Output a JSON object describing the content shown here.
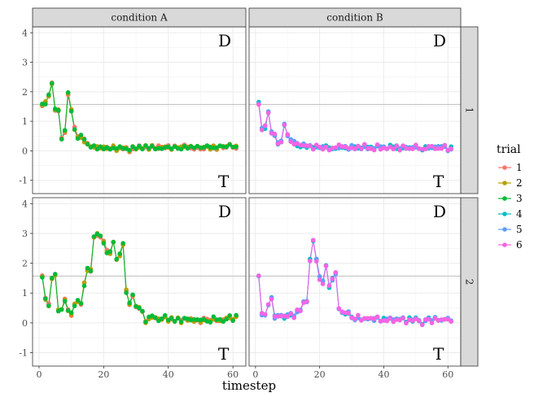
{
  "chart_data": {
    "type": "line",
    "xlabel": "timestep",
    "ylabel": "",
    "xlim": [
      -2,
      64
    ],
    "ylim": [
      -1.45,
      4.2
    ],
    "x_ticks": [
      0,
      20,
      40,
      60
    ],
    "y_ticks": [
      -1,
      0,
      1,
      2,
      3,
      4
    ],
    "reference_line": 1.57,
    "col_facets": [
      "condition A",
      "condition B"
    ],
    "row_facets": [
      "1",
      "2"
    ],
    "annotations": {
      "top": "D",
      "bottom": "T"
    },
    "legend": {
      "title": "trial",
      "placement": "right",
      "entries": [
        {
          "label": "1",
          "color": "#F8766D"
        },
        {
          "label": "2",
          "color": "#B79F00"
        },
        {
          "label": "3",
          "color": "#00BA38"
        },
        {
          "label": "4",
          "color": "#00BFC4"
        },
        {
          "label": "5",
          "color": "#619CFF"
        },
        {
          "label": "6",
          "color": "#F564E3"
        }
      ]
    },
    "panels": [
      {
        "row": "1",
        "col": "condition A",
        "trials": [
          "1",
          "2",
          "3"
        ],
        "series": [
          {
            "x": 1,
            "y": 1.58
          },
          {
            "x": 2,
            "y": 1.62
          },
          {
            "x": 3,
            "y": 1.9
          },
          {
            "x": 4,
            "y": 2.3
          },
          {
            "x": 5,
            "y": 1.38
          },
          {
            "x": 6,
            "y": 1.35
          },
          {
            "x": 7,
            "y": 0.42
          },
          {
            "x": 8,
            "y": 0.65
          },
          {
            "x": 9,
            "y": 1.92
          },
          {
            "x": 10,
            "y": 1.35
          },
          {
            "x": 11,
            "y": 0.75
          },
          {
            "x": 12,
            "y": 0.45
          },
          {
            "x": 13,
            "y": 0.5
          },
          {
            "x": 14,
            "y": 0.35
          },
          {
            "x": 15,
            "y": 0.22
          },
          {
            "x": 16,
            "y": 0.15
          },
          {
            "x": 17,
            "y": 0.12
          },
          {
            "x": 18,
            "y": 0.1
          },
          {
            "x": 19,
            "y": 0.1
          },
          {
            "x": 20,
            "y": 0.08
          },
          {
            "x": 21,
            "y": 0.1
          },
          {
            "x": 22,
            "y": 0.05
          },
          {
            "x": 23,
            "y": 0.12
          },
          {
            "x": 24,
            "y": 0.05
          },
          {
            "x": 25,
            "y": 0.15
          },
          {
            "x": 26,
            "y": 0.08
          },
          {
            "x": 27,
            "y": 0.12
          },
          {
            "x": 28,
            "y": 0.02
          },
          {
            "x": 29,
            "y": 0.1
          },
          {
            "x": 30,
            "y": 0.08
          },
          {
            "x": 31,
            "y": 0.12
          },
          {
            "x": 32,
            "y": 0.05
          },
          {
            "x": 33,
            "y": 0.15
          },
          {
            "x": 34,
            "y": 0.1
          },
          {
            "x": 35,
            "y": 0.18
          },
          {
            "x": 36,
            "y": 0.05
          },
          {
            "x": 37,
            "y": 0.12
          },
          {
            "x": 38,
            "y": 0.08
          },
          {
            "x": 39,
            "y": 0.1
          },
          {
            "x": 40,
            "y": 0.15
          },
          {
            "x": 41,
            "y": 0.05
          },
          {
            "x": 42,
            "y": 0.12
          },
          {
            "x": 43,
            "y": 0.08
          },
          {
            "x": 44,
            "y": 0.1
          },
          {
            "x": 45,
            "y": 0.18
          },
          {
            "x": 46,
            "y": 0.1
          },
          {
            "x": 47,
            "y": 0.12
          },
          {
            "x": 48,
            "y": 0.05
          },
          {
            "x": 49,
            "y": 0.15
          },
          {
            "x": 50,
            "y": 0.1
          },
          {
            "x": 51,
            "y": 0.08
          },
          {
            "x": 52,
            "y": 0.2
          },
          {
            "x": 53,
            "y": 0.1
          },
          {
            "x": 54,
            "y": 0.15
          },
          {
            "x": 55,
            "y": 0.05
          },
          {
            "x": 56,
            "y": 0.12
          },
          {
            "x": 57,
            "y": 0.1
          },
          {
            "x": 58,
            "y": 0.15
          },
          {
            "x": 59,
            "y": 0.25
          },
          {
            "x": 60,
            "y": 0.15
          },
          {
            "x": 61,
            "y": 0.12
          }
        ]
      },
      {
        "row": "1",
        "col": "condition B",
        "trials": [
          "4",
          "5",
          "6"
        ],
        "series": [
          {
            "x": 1,
            "y": 1.6
          },
          {
            "x": 2,
            "y": 0.75
          },
          {
            "x": 3,
            "y": 0.8
          },
          {
            "x": 4,
            "y": 1.28
          },
          {
            "x": 5,
            "y": 0.62
          },
          {
            "x": 6,
            "y": 0.55
          },
          {
            "x": 7,
            "y": 0.25
          },
          {
            "x": 8,
            "y": 0.3
          },
          {
            "x": 9,
            "y": 0.9
          },
          {
            "x": 10,
            "y": 0.55
          },
          {
            "x": 11,
            "y": 0.35
          },
          {
            "x": 12,
            "y": 0.28
          },
          {
            "x": 13,
            "y": 0.2
          },
          {
            "x": 14,
            "y": 0.15
          },
          {
            "x": 15,
            "y": 0.2
          },
          {
            "x": 16,
            "y": 0.12
          },
          {
            "x": 17,
            "y": 0.18
          },
          {
            "x": 18,
            "y": 0.1
          },
          {
            "x": 19,
            "y": 0.15
          },
          {
            "x": 20,
            "y": 0.12
          },
          {
            "x": 21,
            "y": 0.1
          },
          {
            "x": 22,
            "y": 0.15
          },
          {
            "x": 23,
            "y": 0.08
          },
          {
            "x": 24,
            "y": 0.12
          },
          {
            "x": 25,
            "y": 0.1
          },
          {
            "x": 26,
            "y": 0.15
          },
          {
            "x": 27,
            "y": 0.1
          },
          {
            "x": 28,
            "y": 0.12
          },
          {
            "x": 29,
            "y": 0.08
          },
          {
            "x": 30,
            "y": 0.15
          },
          {
            "x": 31,
            "y": 0.1
          },
          {
            "x": 32,
            "y": 0.12
          },
          {
            "x": 33,
            "y": 0.08
          },
          {
            "x": 34,
            "y": 0.18
          },
          {
            "x": 35,
            "y": 0.1
          },
          {
            "x": 36,
            "y": 0.12
          },
          {
            "x": 37,
            "y": 0.05
          },
          {
            "x": 38,
            "y": 0.15
          },
          {
            "x": 39,
            "y": 0.1
          },
          {
            "x": 40,
            "y": 0.12
          },
          {
            "x": 41,
            "y": 0.08
          },
          {
            "x": 42,
            "y": 0.15
          },
          {
            "x": 43,
            "y": 0.1
          },
          {
            "x": 44,
            "y": 0.12
          },
          {
            "x": 45,
            "y": 0.05
          },
          {
            "x": 46,
            "y": 0.15
          },
          {
            "x": 47,
            "y": 0.1
          },
          {
            "x": 48,
            "y": 0.12
          },
          {
            "x": 49,
            "y": 0.08
          },
          {
            "x": 50,
            "y": 0.15
          },
          {
            "x": 51,
            "y": 0.1
          },
          {
            "x": 52,
            "y": 0.05
          },
          {
            "x": 53,
            "y": 0.12
          },
          {
            "x": 54,
            "y": 0.1
          },
          {
            "x": 55,
            "y": 0.15
          },
          {
            "x": 56,
            "y": 0.08
          },
          {
            "x": 57,
            "y": 0.12
          },
          {
            "x": 58,
            "y": 0.1
          },
          {
            "x": 59,
            "y": 0.15
          },
          {
            "x": 60,
            "y": 0.05
          },
          {
            "x": 61,
            "y": 0.1
          }
        ]
      },
      {
        "row": "2",
        "col": "condition A",
        "trials": [
          "1",
          "2",
          "3"
        ],
        "series": [
          {
            "x": 1,
            "y": 1.55
          },
          {
            "x": 2,
            "y": 0.8
          },
          {
            "x": 3,
            "y": 0.6
          },
          {
            "x": 4,
            "y": 1.45
          },
          {
            "x": 5,
            "y": 1.6
          },
          {
            "x": 6,
            "y": 0.45
          },
          {
            "x": 7,
            "y": 0.48
          },
          {
            "x": 8,
            "y": 0.75
          },
          {
            "x": 9,
            "y": 0.45
          },
          {
            "x": 10,
            "y": 0.3
          },
          {
            "x": 11,
            "y": 0.6
          },
          {
            "x": 12,
            "y": 0.75
          },
          {
            "x": 13,
            "y": 0.6
          },
          {
            "x": 14,
            "y": 1.3
          },
          {
            "x": 15,
            "y": 1.8
          },
          {
            "x": 16,
            "y": 1.75
          },
          {
            "x": 17,
            "y": 2.85
          },
          {
            "x": 18,
            "y": 2.95
          },
          {
            "x": 19,
            "y": 2.9
          },
          {
            "x": 20,
            "y": 2.7
          },
          {
            "x": 21,
            "y": 2.4
          },
          {
            "x": 22,
            "y": 2.35
          },
          {
            "x": 23,
            "y": 2.7
          },
          {
            "x": 24,
            "y": 2.1
          },
          {
            "x": 25,
            "y": 2.3
          },
          {
            "x": 26,
            "y": 2.65
          },
          {
            "x": 27,
            "y": 1.05
          },
          {
            "x": 28,
            "y": 0.65
          },
          {
            "x": 29,
            "y": 0.95
          },
          {
            "x": 30,
            "y": 0.55
          },
          {
            "x": 31,
            "y": 0.5
          },
          {
            "x": 32,
            "y": 0.35
          },
          {
            "x": 33,
            "y": 0.05
          },
          {
            "x": 34,
            "y": 0.15
          },
          {
            "x": 35,
            "y": 0.2
          },
          {
            "x": 36,
            "y": 0.15
          },
          {
            "x": 37,
            "y": 0.1
          },
          {
            "x": 38,
            "y": 0.15
          },
          {
            "x": 39,
            "y": 0.2
          },
          {
            "x": 40,
            "y": 0.1
          },
          {
            "x": 41,
            "y": 0.15
          },
          {
            "x": 42,
            "y": 0.08
          },
          {
            "x": 43,
            "y": 0.12
          },
          {
            "x": 44,
            "y": 0.05
          },
          {
            "x": 45,
            "y": 0.15
          },
          {
            "x": 46,
            "y": 0.1
          },
          {
            "x": 47,
            "y": 0.12
          },
          {
            "x": 48,
            "y": 0.08
          },
          {
            "x": 49,
            "y": 0.1
          },
          {
            "x": 50,
            "y": 0.05
          },
          {
            "x": 51,
            "y": 0.12
          },
          {
            "x": 52,
            "y": 0.1
          },
          {
            "x": 53,
            "y": 0.08
          },
          {
            "x": 54,
            "y": 0.15
          },
          {
            "x": 55,
            "y": 0.05
          },
          {
            "x": 56,
            "y": 0.12
          },
          {
            "x": 57,
            "y": 0.1
          },
          {
            "x": 58,
            "y": 0.15
          },
          {
            "x": 59,
            "y": 0.2
          },
          {
            "x": 60,
            "y": 0.1
          },
          {
            "x": 61,
            "y": 0.25
          }
        ]
      },
      {
        "row": "2",
        "col": "condition B",
        "trials": [
          "4",
          "5",
          "6"
        ],
        "series": [
          {
            "x": 1,
            "y": 1.6
          },
          {
            "x": 2,
            "y": 0.3
          },
          {
            "x": 3,
            "y": 0.3
          },
          {
            "x": 4,
            "y": 0.6
          },
          {
            "x": 5,
            "y": 0.8
          },
          {
            "x": 6,
            "y": 0.2
          },
          {
            "x": 7,
            "y": 0.25
          },
          {
            "x": 8,
            "y": 0.25
          },
          {
            "x": 9,
            "y": 0.2
          },
          {
            "x": 10,
            "y": 0.25
          },
          {
            "x": 11,
            "y": 0.3
          },
          {
            "x": 12,
            "y": 0.2
          },
          {
            "x": 13,
            "y": 0.4
          },
          {
            "x": 14,
            "y": 0.45
          },
          {
            "x": 15,
            "y": 0.7
          },
          {
            "x": 16,
            "y": 0.75
          },
          {
            "x": 17,
            "y": 2.1
          },
          {
            "x": 18,
            "y": 2.75
          },
          {
            "x": 19,
            "y": 2.1
          },
          {
            "x": 20,
            "y": 1.5
          },
          {
            "x": 21,
            "y": 1.35
          },
          {
            "x": 22,
            "y": 1.9
          },
          {
            "x": 23,
            "y": 1.2
          },
          {
            "x": 24,
            "y": 1.45
          },
          {
            "x": 25,
            "y": 1.65
          },
          {
            "x": 26,
            "y": 0.5
          },
          {
            "x": 27,
            "y": 0.35
          },
          {
            "x": 28,
            "y": 0.3
          },
          {
            "x": 29,
            "y": 0.35
          },
          {
            "x": 30,
            "y": 0.2
          },
          {
            "x": 31,
            "y": 0.15
          },
          {
            "x": 32,
            "y": 0.2
          },
          {
            "x": 33,
            "y": 0.12
          },
          {
            "x": 34,
            "y": 0.15
          },
          {
            "x": 35,
            "y": 0.1
          },
          {
            "x": 36,
            "y": 0.18
          },
          {
            "x": 37,
            "y": 0.1
          },
          {
            "x": 38,
            "y": 0.15
          },
          {
            "x": 39,
            "y": 0.05
          },
          {
            "x": 40,
            "y": 0.12
          },
          {
            "x": 41,
            "y": 0.1
          },
          {
            "x": 42,
            "y": 0.15
          },
          {
            "x": 43,
            "y": 0.08
          },
          {
            "x": 44,
            "y": 0.12
          },
          {
            "x": 45,
            "y": 0.1
          },
          {
            "x": 46,
            "y": 0.15
          },
          {
            "x": 47,
            "y": 0.05
          },
          {
            "x": 48,
            "y": 0.12
          },
          {
            "x": 49,
            "y": 0.1
          },
          {
            "x": 50,
            "y": 0.15
          },
          {
            "x": 51,
            "y": 0.08
          },
          {
            "x": 52,
            "y": -0.05
          },
          {
            "x": 53,
            "y": 0.1
          },
          {
            "x": 54,
            "y": 0.12
          },
          {
            "x": 55,
            "y": 0.05
          },
          {
            "x": 56,
            "y": 0.15
          },
          {
            "x": 57,
            "y": 0.1
          },
          {
            "x": 58,
            "y": 0.12
          },
          {
            "x": 59,
            "y": 0.08
          },
          {
            "x": 60,
            "y": 0.15
          },
          {
            "x": 61,
            "y": 0.1
          }
        ]
      }
    ]
  }
}
